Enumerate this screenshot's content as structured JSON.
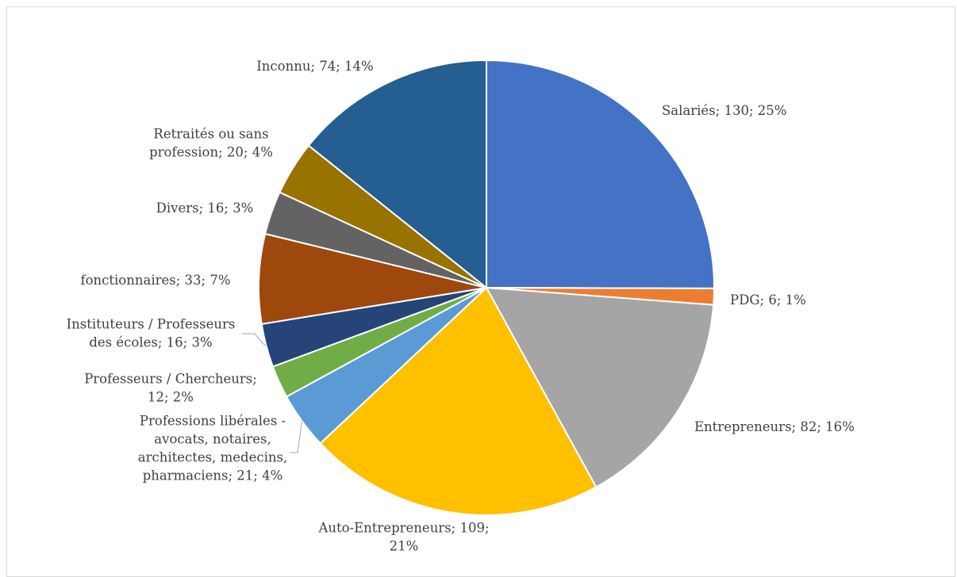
{
  "chart_data": {
    "type": "pie",
    "title": "",
    "slices": [
      {
        "category": "Salariés",
        "value": 130,
        "percent": "25%",
        "color": "#4472C4"
      },
      {
        "category": "PDG",
        "value": 6,
        "percent": "1%",
        "color": "#ED7D31"
      },
      {
        "category": "Entrepreneurs",
        "value": 82,
        "percent": "16%",
        "color": "#A5A5A5"
      },
      {
        "category": "Auto-Entrepreneurs",
        "value": 109,
        "percent": "21%",
        "color": "#FFC000"
      },
      {
        "category": "Professions libérales - avocats, notaires, architectes, medecins, pharmaciens",
        "value": 21,
        "percent": "4%",
        "color": "#5B9BD5"
      },
      {
        "category": "Professeurs / Chercheurs",
        "value": 12,
        "percent": "2%",
        "color": "#70AD47"
      },
      {
        "category": "Instituteurs / Professeurs des écoles",
        "value": 16,
        "percent": "3%",
        "color": "#264478"
      },
      {
        "category": "fonctionnaires",
        "value": 33,
        "percent": "7%",
        "color": "#9E480E"
      },
      {
        "category": "Divers",
        "value": 16,
        "percent": "3%",
        "color": "#636363"
      },
      {
        "category": "Retraités ou sans profession",
        "value": 20,
        "percent": "4%",
        "color": "#997300"
      },
      {
        "category": "Inconnu",
        "value": 74,
        "percent": "14%",
        "color": "#255E91"
      }
    ],
    "labels": [
      [
        "Salariés; 130; 25%"
      ],
      [
        "PDG; 6; 1%"
      ],
      [
        "Entrepreneurs; 82; 16%"
      ],
      [
        "Auto-Entrepreneurs; 109;",
        "21%"
      ],
      [
        "Professions libérales -",
        "avocats, notaires,",
        "architectes, medecins,",
        "pharmaciens; 21; 4%"
      ],
      [
        "Professeurs / Chercheurs;",
        "12; 2%"
      ],
      [
        "Instituteurs / Professeurs",
        "des écoles; 16; 3%"
      ],
      [
        "fonctionnaires; 33; 7%"
      ],
      [
        "Divers; 16; 3%"
      ],
      [
        "Retraités ou sans",
        "profession; 20; 4%"
      ],
      [
        "Inconnu; 74; 14%"
      ]
    ],
    "legend": "none"
  }
}
